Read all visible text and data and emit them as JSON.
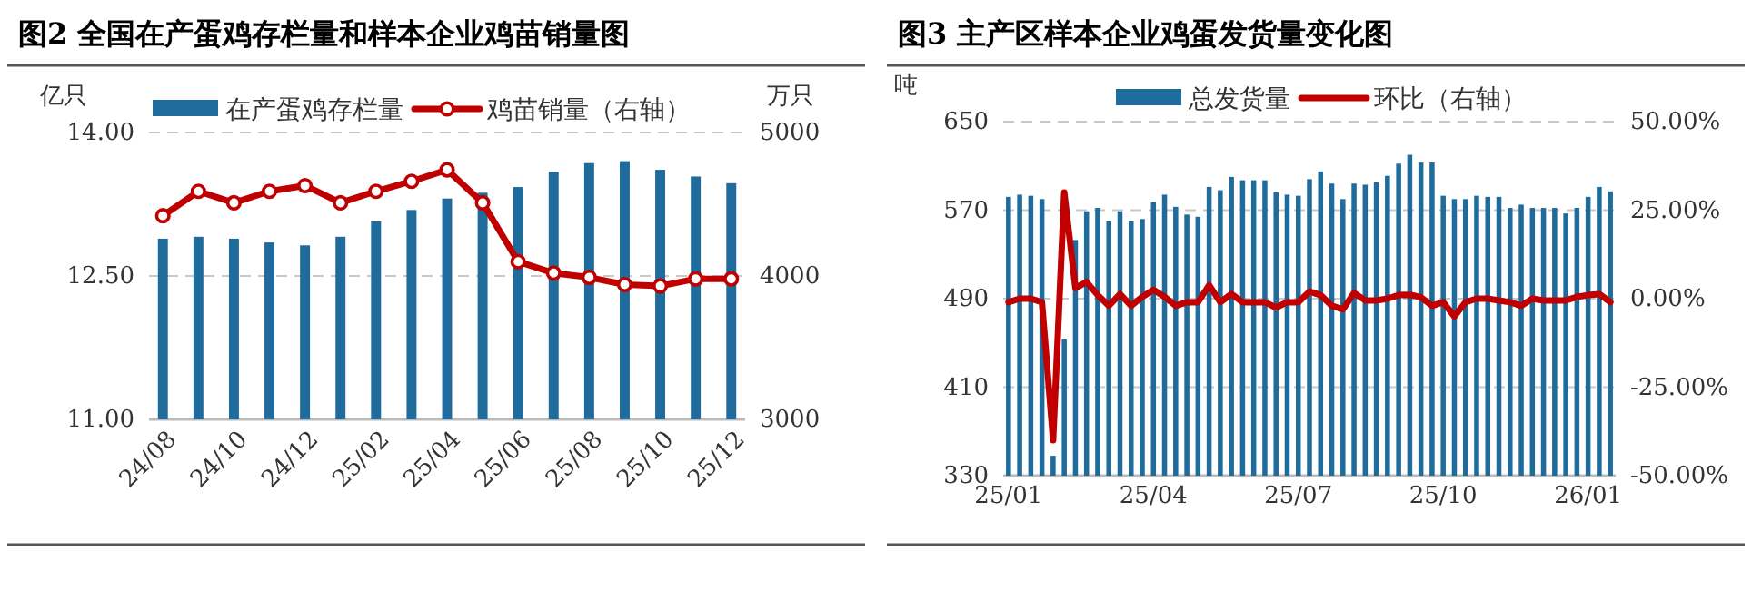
{
  "chart_data": [
    {
      "type": "bar",
      "title": "图2 全国在产蛋鸡存栏量和样本企业鸡苗销量图",
      "ylabel": "亿只",
      "y2label": "万只",
      "categories": [
        "24/08",
        null,
        "24/10",
        null,
        "24/12",
        null,
        "25/02",
        null,
        "25/04",
        null,
        "25/06",
        null,
        "25/08",
        null,
        "25/10",
        null,
        "25/12"
      ],
      "series": [
        {
          "name": "在产蛋鸡存栏量",
          "color": "#1f6b9c",
          "values": [
            12.89,
            12.91,
            12.89,
            12.85,
            12.82,
            12.91,
            13.07,
            13.19,
            13.31,
            13.37,
            13.43,
            13.59,
            13.68,
            13.7,
            13.61,
            13.54,
            13.47
          ]
        },
        {
          "name": "鸡苗销量（右轴）",
          "type": "line",
          "axis": "y2",
          "color": "#c00000",
          "values": [
            4420,
            4590,
            4510,
            4590,
            4630,
            4510,
            4590,
            4660,
            4740,
            4510,
            4100,
            4020,
            3990,
            3940,
            3930,
            3980,
            3980
          ]
        }
      ],
      "ylim": [
        11,
        14
      ],
      "yticks": [
        {
          "value": 11,
          "label": "11.00"
        },
        {
          "value": 12.5,
          "label": "12.50"
        },
        {
          "value": 14,
          "label": "14.00"
        }
      ],
      "y2lim": [
        3000,
        5000
      ],
      "y2ticks": [
        3000,
        4000,
        5000
      ],
      "grid": "y",
      "legend": "top",
      "marker": "circle"
    },
    {
      "type": "bar",
      "title": "图3 主产区样本企业鸡蛋发货量变化图",
      "ylabel": "吨",
      "categories": [
        "25/01",
        null,
        null,
        null,
        null,
        null,
        null,
        null,
        null,
        null,
        null,
        null,
        null,
        "25/04",
        null,
        null,
        null,
        null,
        null,
        null,
        null,
        null,
        null,
        null,
        null,
        null,
        "25/07",
        null,
        null,
        null,
        null,
        null,
        null,
        null,
        null,
        null,
        null,
        null,
        null,
        "25/10",
        null,
        null,
        null,
        null,
        null,
        null,
        null,
        null,
        null,
        null,
        null,
        null,
        "26/01",
        null,
        null
      ],
      "series": [
        {
          "name": "总发货量",
          "color": "#1f6b9c",
          "values": [
            582,
            584,
            583,
            580,
            348,
            453,
            543,
            569,
            572,
            560,
            569,
            560,
            562,
            577,
            584,
            573,
            566,
            564,
            591,
            588,
            600,
            597,
            597,
            597,
            586,
            584,
            583,
            598,
            605,
            594,
            580,
            594,
            593,
            595,
            601,
            612,
            620,
            613,
            613,
            583,
            580,
            580,
            583,
            582,
            582,
            572,
            575,
            572,
            572,
            572,
            567,
            572,
            582,
            591,
            587
          ]
        },
        {
          "name": "环比（右轴）",
          "type": "line",
          "axis": "y2",
          "color": "#c00000",
          "values": [
            -1,
            0,
            0,
            -1,
            -40,
            30,
            3,
            4.7,
            1,
            -2,
            1.3,
            -2,
            0.5,
            2.5,
            0.5,
            -2,
            -1,
            -1,
            3.8,
            -1,
            1.3,
            -1,
            -1,
            -1,
            -2.5,
            -1,
            -1,
            2,
            1,
            -2,
            -3,
            1.6,
            -0.5,
            -0.5,
            0,
            1,
            1.1,
            0.4,
            -2,
            -1,
            -5,
            -1,
            0,
            0,
            -0.5,
            -1,
            -2,
            0,
            -0.5,
            -0.5,
            -0.5,
            0.5,
            1,
            1.3,
            -1
          ]
        }
      ],
      "ylim": [
        330,
        650
      ],
      "yticks": [
        330,
        410,
        490,
        570,
        650
      ],
      "y2lim": [
        -50,
        50
      ],
      "y2ticks": [
        {
          "value": -50,
          "label": "-50.00%"
        },
        {
          "value": -25,
          "label": "-25.00%"
        },
        {
          "value": 0,
          "label": "0.00%"
        },
        {
          "value": 25,
          "label": "25.00%"
        },
        {
          "value": 50,
          "label": "50.00%"
        }
      ],
      "grid": "y",
      "legend": "top"
    }
  ]
}
